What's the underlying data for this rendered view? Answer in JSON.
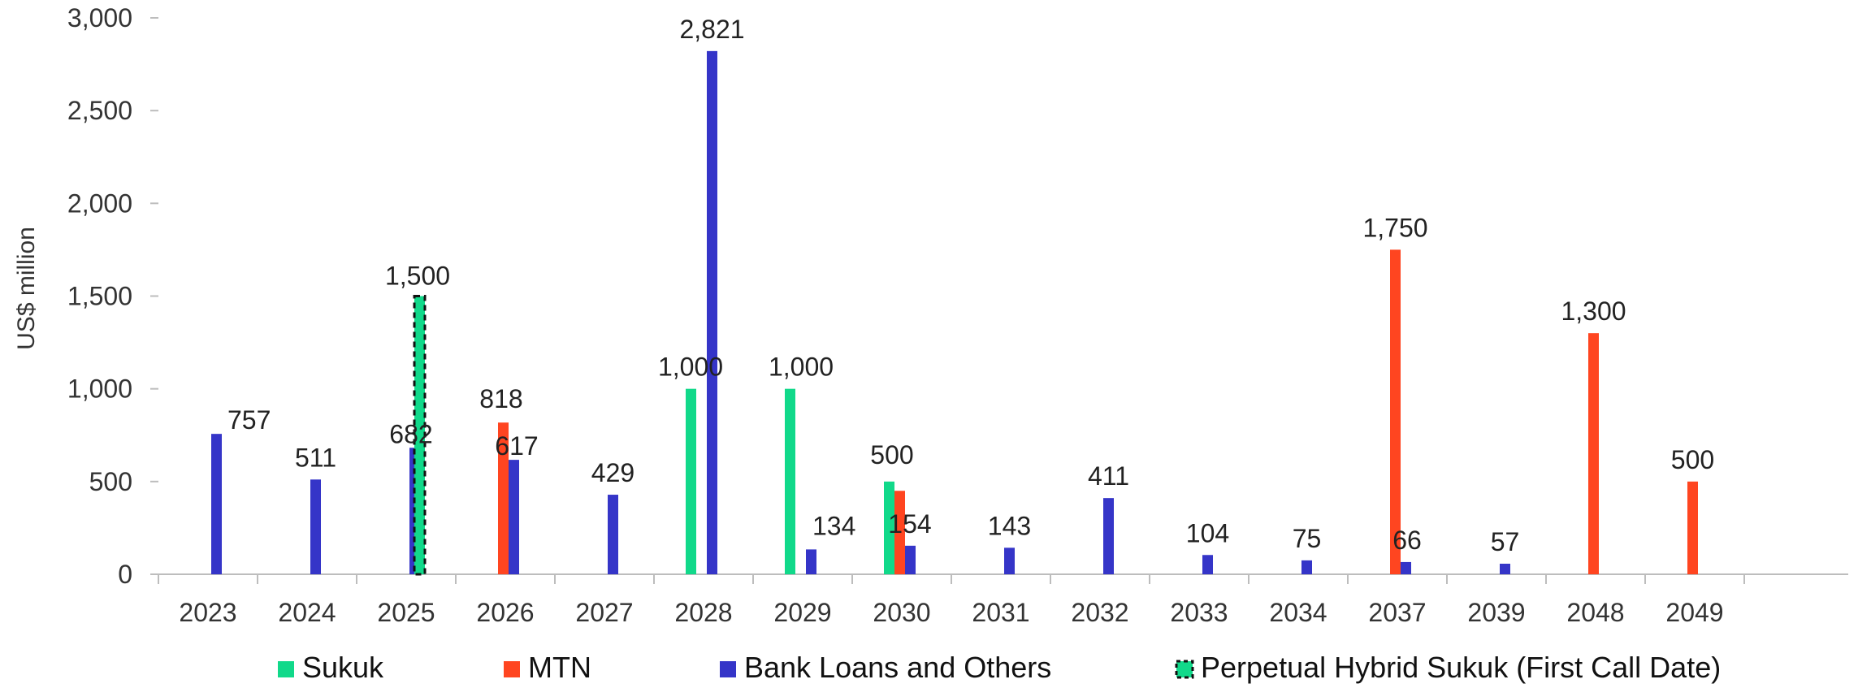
{
  "chart_data": {
    "type": "bar",
    "ylabel": "US$ million",
    "xlabel": "",
    "ylim": [
      0,
      3000
    ],
    "yticks": [
      0,
      500,
      1000,
      1500,
      2000,
      2500,
      3000
    ],
    "ytick_labels": [
      "0",
      "500",
      "1,000",
      "1,500",
      "2,000",
      "2,500",
      "3,000"
    ],
    "categories": [
      "2023",
      "2024",
      "2025",
      "2026",
      "2027",
      "2028",
      "2029",
      "2030",
      "2031",
      "2032",
      "2033",
      "2034",
      "2037",
      "2039",
      "2048",
      "2049"
    ],
    "series": [
      {
        "name": "Sukuk",
        "color": "#11d98a",
        "style": "solid",
        "values": [
          null,
          null,
          null,
          null,
          null,
          1000,
          1000,
          500,
          null,
          null,
          null,
          null,
          null,
          null,
          null,
          null
        ],
        "labels": [
          null,
          null,
          null,
          null,
          null,
          "1,000",
          "1,000",
          "500",
          null,
          null,
          null,
          null,
          null,
          null,
          null,
          null
        ]
      },
      {
        "name": "MTN",
        "color": "#ff4520",
        "style": "solid",
        "values": [
          null,
          null,
          null,
          818,
          null,
          null,
          null,
          450,
          null,
          null,
          null,
          null,
          1750,
          null,
          1300,
          500
        ],
        "labels": [
          null,
          null,
          null,
          "818",
          null,
          null,
          null,
          null,
          null,
          null,
          null,
          null,
          "1,750",
          null,
          "1,300",
          "500"
        ]
      },
      {
        "name": "Bank Loans and Others",
        "color": "#3535c8",
        "style": "solid",
        "values": [
          757,
          511,
          682,
          617,
          429,
          2821,
          134,
          154,
          143,
          411,
          104,
          75,
          66,
          57,
          null,
          null
        ],
        "labels": [
          "757",
          "511",
          "682",
          "617",
          "429",
          "2,821",
          "134",
          "154",
          "143",
          "411",
          "104",
          "75",
          "66",
          "57",
          null,
          null
        ]
      },
      {
        "name": "Perpetual Hybrid Sukuk (First Call Date)",
        "color": "#11d98a",
        "style": "dashed",
        "values": [
          null,
          null,
          1500,
          null,
          null,
          null,
          null,
          null,
          null,
          null,
          null,
          null,
          null,
          null,
          null,
          null
        ],
        "labels": [
          null,
          null,
          "1,500",
          null,
          null,
          null,
          null,
          null,
          null,
          null,
          null,
          null,
          null,
          null,
          null,
          null
        ]
      }
    ],
    "grid": false,
    "legend_position": "bottom"
  }
}
